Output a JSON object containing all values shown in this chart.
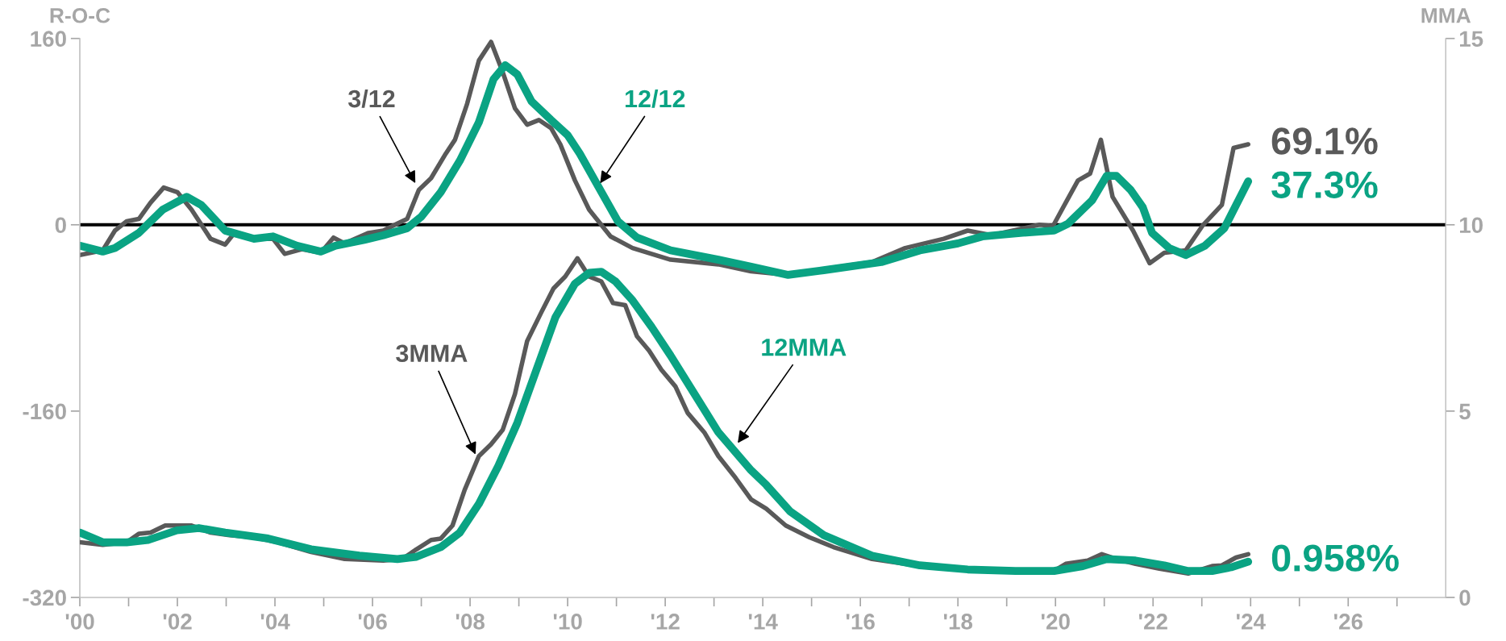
{
  "chart_data": {
    "type": "line",
    "ylabel": "R-O-C",
    "y2label": "MMA",
    "xlim": [
      2000,
      2028
    ],
    "xticks": [
      {
        "value": 2000,
        "label": "'00"
      },
      {
        "value": 2001,
        "label": null
      },
      {
        "value": 2002,
        "label": "'02"
      },
      {
        "value": 2003,
        "label": null
      },
      {
        "value": 2004,
        "label": "'04"
      },
      {
        "value": 2005,
        "label": null
      },
      {
        "value": 2006,
        "label": "'06"
      },
      {
        "value": 2007,
        "label": null
      },
      {
        "value": 2008,
        "label": "'08"
      },
      {
        "value": 2009,
        "label": null
      },
      {
        "value": 2010,
        "label": "'10"
      },
      {
        "value": 2011,
        "label": null
      },
      {
        "value": 2012,
        "label": "'12"
      },
      {
        "value": 2013,
        "label": null
      },
      {
        "value": 2014,
        "label": "'14"
      },
      {
        "value": 2015,
        "label": null
      },
      {
        "value": 2016,
        "label": "'16"
      },
      {
        "value": 2017,
        "label": null
      },
      {
        "value": 2018,
        "label": "'18"
      },
      {
        "value": 2019,
        "label": null
      },
      {
        "value": 2020,
        "label": "'20"
      },
      {
        "value": 2021,
        "label": null
      },
      {
        "value": 2022,
        "label": "'22"
      },
      {
        "value": 2023,
        "label": null
      },
      {
        "value": 2024,
        "label": "'24"
      },
      {
        "value": 2025,
        "label": null
      },
      {
        "value": 2026,
        "label": "'26"
      },
      {
        "value": 2027,
        "label": null
      }
    ],
    "ylim": [
      -320,
      160
    ],
    "yticks": [
      -320,
      -160,
      0,
      160
    ],
    "y2lim": [
      0,
      15
    ],
    "y2ticks": [
      0,
      5,
      10,
      15
    ],
    "grid": false,
    "legend": false,
    "ref_lines": [
      {
        "axis": "y",
        "value": 0,
        "color": "#000000"
      }
    ],
    "series": [
      {
        "color": "#595959",
        "axis": "y",
        "x": [
          2000.0,
          2000.47,
          2000.72,
          2000.96,
          2001.21,
          2001.45,
          2001.72,
          2002.0,
          2002.29,
          2002.68,
          2002.98,
          2003.17,
          2003.57,
          2003.96,
          2004.2,
          2004.55,
          2004.94,
          2005.2,
          2005.43,
          2005.92,
          2006.22,
          2006.51,
          2006.71,
          2006.95,
          2007.2,
          2007.5,
          2007.69,
          2007.94,
          2008.18,
          2008.43,
          2008.67,
          2008.92,
          2009.17,
          2009.41,
          2009.66,
          2009.85,
          2010.15,
          2010.44,
          2010.88,
          2011.33,
          2012.11,
          2013.09,
          2013.76,
          2014.52,
          2015.25,
          2016.24,
          2016.92,
          2017.71,
          2018.2,
          2018.69,
          2019.67,
          2019.95,
          2020.21,
          2020.46,
          2020.71,
          2020.93,
          2021.17,
          2021.59,
          2021.93,
          2022.23,
          2022.67,
          2023.01,
          2023.41,
          2023.65,
          2023.95
        ],
        "values": [
          -26,
          -22,
          -5,
          3,
          5,
          19,
          32,
          28,
          13,
          -12,
          -17,
          -7,
          -12,
          -12,
          -25,
          -21,
          -24,
          -11,
          -16,
          -7,
          -5,
          1,
          5,
          30,
          40,
          61,
          73,
          104,
          141,
          157,
          131,
          100,
          86,
          90,
          83,
          69,
          38,
          13,
          -10,
          -20,
          -30,
          -34,
          -40,
          -43,
          -38,
          -32,
          -20,
          -12,
          -5,
          -9,
          0,
          -1,
          19,
          38,
          44,
          73,
          24,
          -5,
          -33,
          -24,
          -22,
          -1,
          17,
          66,
          69.1
        ]
      },
      {
        "color": "#0aa383",
        "axis": "y",
        "x": [
          2000.0,
          2000.47,
          2000.72,
          2001.21,
          2001.7,
          2002.19,
          2002.49,
          2002.98,
          2003.57,
          2003.96,
          2004.45,
          2004.94,
          2005.24,
          2005.83,
          2006.22,
          2006.71,
          2007.0,
          2007.4,
          2007.79,
          2008.18,
          2008.48,
          2008.72,
          2008.97,
          2009.26,
          2009.66,
          2010.0,
          2010.25,
          2010.64,
          2011.03,
          2011.42,
          2012.11,
          2013.09,
          2013.76,
          2014.52,
          2015.25,
          2016.43,
          2017.22,
          2018.0,
          2018.5,
          2019.28,
          2019.97,
          2020.26,
          2020.75,
          2021.05,
          2021.25,
          2021.54,
          2021.79,
          2021.98,
          2022.33,
          2022.67,
          2023.06,
          2023.46,
          2023.95
        ],
        "values": [
          -18,
          -23,
          -20,
          -7,
          13,
          24,
          17,
          -5,
          -12,
          -10,
          -18,
          -23,
          -18,
          -13,
          -9,
          -3,
          7,
          28,
          55,
          88,
          125,
          137,
          129,
          106,
          90,
          77,
          61,
          32,
          3,
          -11,
          -22,
          -30,
          -36,
          -43,
          -39,
          -32,
          -22,
          -16,
          -10,
          -7,
          -5,
          1,
          21,
          42,
          42,
          30,
          15,
          -7,
          -20,
          -26,
          -18,
          -3,
          37.3
        ]
      },
      {
        "color": "#595959",
        "axis": "y2",
        "x": [
          2000.0,
          2000.47,
          2000.96,
          2001.21,
          2001.45,
          2001.75,
          2002.29,
          2002.68,
          2003.07,
          2003.57,
          2004.06,
          2004.74,
          2005.43,
          2006.22,
          2006.61,
          2006.9,
          2007.2,
          2007.4,
          2007.64,
          2007.89,
          2008.18,
          2008.43,
          2008.67,
          2008.92,
          2009.17,
          2009.46,
          2009.71,
          2009.95,
          2010.2,
          2010.44,
          2010.69,
          2010.93,
          2011.18,
          2011.42,
          2011.67,
          2011.92,
          2012.21,
          2012.46,
          2012.8,
          2013.09,
          2013.44,
          2013.76,
          2014.07,
          2014.47,
          2014.96,
          2015.45,
          2016.24,
          2017.22,
          2018.2,
          2019.18,
          2019.97,
          2020.21,
          2020.66,
          2020.95,
          2021.25,
          2021.64,
          2022.13,
          2022.72,
          2023.21,
          2023.41,
          2023.7,
          2023.95
        ],
        "values": [
          1.48,
          1.41,
          1.48,
          1.71,
          1.74,
          1.93,
          1.93,
          1.74,
          1.67,
          1.61,
          1.48,
          1.22,
          1.03,
          0.99,
          1.03,
          1.29,
          1.54,
          1.58,
          1.93,
          2.89,
          3.79,
          4.11,
          4.5,
          5.46,
          6.88,
          7.65,
          8.29,
          8.61,
          9.1,
          8.61,
          8.48,
          7.9,
          7.84,
          7.01,
          6.62,
          6.11,
          5.66,
          4.95,
          4.43,
          3.79,
          3.21,
          2.63,
          2.38,
          1.93,
          1.61,
          1.35,
          1.03,
          0.84,
          0.75,
          0.71,
          0.71,
          0.9,
          0.99,
          1.16,
          1.03,
          0.9,
          0.77,
          0.64,
          0.84,
          0.86,
          1.07,
          1.16
        ]
      },
      {
        "color": "#0aa383",
        "axis": "y2",
        "x": [
          2000.0,
          2000.47,
          2000.96,
          2001.4,
          2001.99,
          2002.44,
          2002.98,
          2003.86,
          2004.74,
          2005.73,
          2006.51,
          2006.9,
          2007.4,
          2007.79,
          2008.18,
          2008.58,
          2008.97,
          2009.36,
          2009.75,
          2010.15,
          2010.44,
          2010.69,
          2010.98,
          2011.33,
          2011.72,
          2012.11,
          2012.6,
          2013.09,
          2013.76,
          2014.07,
          2014.56,
          2015.25,
          2016.24,
          2017.22,
          2018.2,
          2019.18,
          2019.97,
          2020.56,
          2021.05,
          2021.64,
          2022.23,
          2022.72,
          2023.21,
          2023.6,
          2023.95
        ],
        "values": [
          1.74,
          1.48,
          1.48,
          1.54,
          1.8,
          1.86,
          1.74,
          1.58,
          1.29,
          1.12,
          1.03,
          1.09,
          1.35,
          1.74,
          2.51,
          3.53,
          4.69,
          6.11,
          7.52,
          8.42,
          8.71,
          8.74,
          8.48,
          7.97,
          7.26,
          6.49,
          5.46,
          4.43,
          3.41,
          3.02,
          2.31,
          1.67,
          1.12,
          0.86,
          0.75,
          0.71,
          0.71,
          0.84,
          1.03,
          0.99,
          0.86,
          0.71,
          0.71,
          0.81,
          0.958
        ]
      }
    ],
    "annotations": [
      {
        "text": "3/12",
        "x": 2006.9,
        "y": 34
      },
      {
        "text": "12/12",
        "x": 2010.64,
        "y": 34
      },
      {
        "text": "3MMA",
        "x": 2008.13,
        "y": -199
      },
      {
        "text": "12MMA",
        "x": 2013.46,
        "y": -189
      },
      {
        "text": "69.1%",
        "x": 2023.95,
        "y": 69.1
      },
      {
        "text": "37.3%",
        "x": 2023.95,
        "y": 37.3
      },
      {
        "text": "0.958%",
        "x": 2023.95,
        "y": -289
      }
    ]
  }
}
